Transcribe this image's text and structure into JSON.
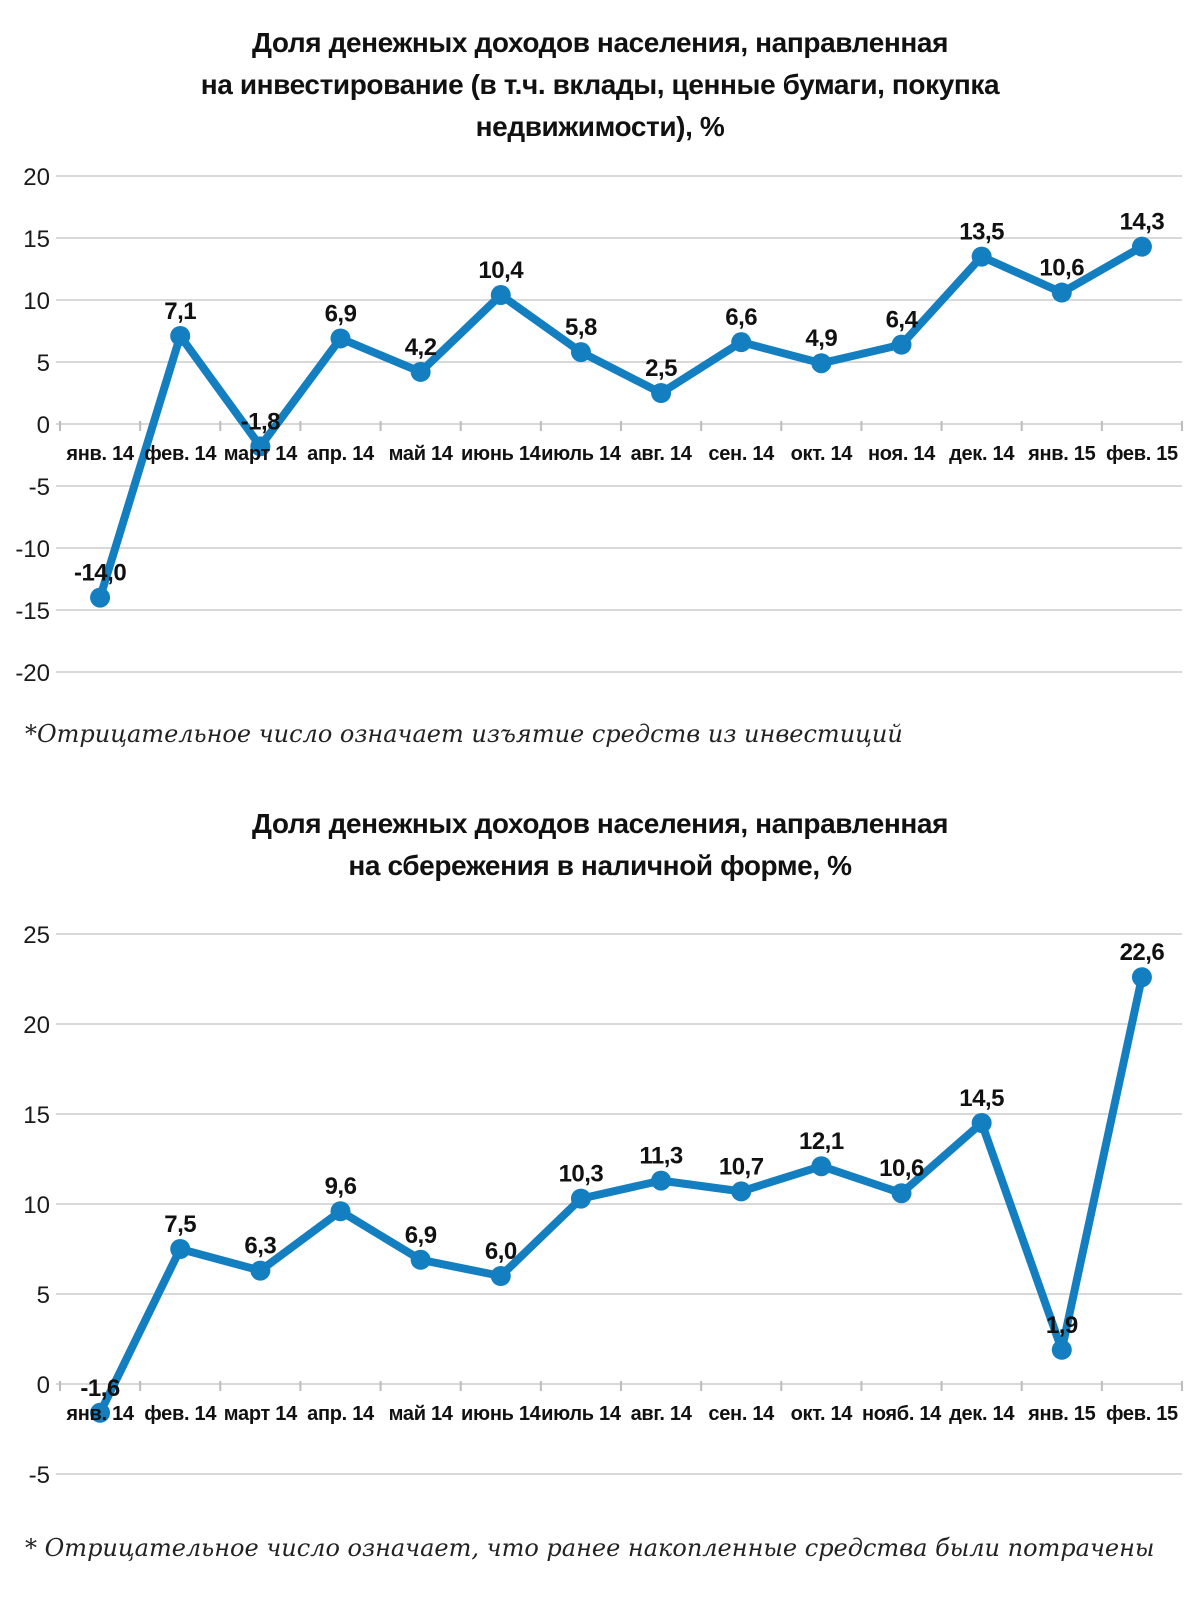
{
  "page": {
    "background": "#ffffff"
  },
  "colors": {
    "line": "#147fc0",
    "grid": "#d9d9d9",
    "tick": "#bdbdbd",
    "text": "#1a1a1a"
  },
  "chart_data": [
    {
      "type": "line",
      "title": "Доля денежных доходов населения, направленная на инвестирование (в т.ч. вклады, ценные бумаги, покупка недвижимости), %",
      "title_lines": [
        "Доля денежных доходов населения, направленная",
        "на инвестирование (в т.ч. вклады, ценные бумаги, покупка",
        "недвижимости), %"
      ],
      "categories": [
        "янв. 14",
        "фев. 14",
        "март 14",
        "апр. 14",
        "май 14",
        "июнь 14",
        "июль 14",
        "авг. 14",
        "сен. 14",
        "окт. 14",
        "ноя. 14",
        "дек. 14",
        "янв. 15",
        "фев. 15"
      ],
      "values": [
        -14.0,
        7.1,
        -1.8,
        6.9,
        4.2,
        10.4,
        5.8,
        2.5,
        6.6,
        4.9,
        6.4,
        13.5,
        10.6,
        14.3
      ],
      "labels": [
        "-14,0",
        "7,1",
        "-1,8",
        "6,9",
        "4,2",
        "10,4",
        "5,8",
        "2,5",
        "6,6",
        "4,9",
        "6,4",
        "13,5",
        "10,6",
        "14,3"
      ],
      "ylim": [
        -20,
        20
      ],
      "ytick_step": 5,
      "xlabel": "",
      "ylabel": "",
      "grid": "on",
      "legend": "none",
      "marker": "circle",
      "line_color": "#147fc0",
      "footnote": "*Отрицательное число означает изъятие средств из инвестиций"
    },
    {
      "type": "line",
      "title": "Доля денежных доходов населения, направленная на сбережения в наличной форме, %",
      "title_lines": [
        "Доля денежных доходов населения, направленная",
        "на сбережения в наличной форме, %"
      ],
      "categories": [
        "янв. 14",
        "фев. 14",
        "март 14",
        "апр. 14",
        "май 14",
        "июнь 14",
        "июль 14",
        "авг. 14",
        "сен. 14",
        "окт. 14",
        "нояб. 14",
        "дек. 14",
        "янв. 15",
        "фев. 15"
      ],
      "values": [
        -1.6,
        7.5,
        6.3,
        9.6,
        6.9,
        6.0,
        10.3,
        11.3,
        10.7,
        12.1,
        10.6,
        14.5,
        1.9,
        22.6
      ],
      "labels": [
        "-1,6",
        "7,5",
        "6,3",
        "9,6",
        "6,9",
        "6,0",
        "10,3",
        "11,3",
        "10,7",
        "12,1",
        "10,6",
        "14,5",
        "1,9",
        "22,6"
      ],
      "ylim": [
        -5,
        25
      ],
      "ytick_step": 5,
      "xlabel": "",
      "ylabel": "",
      "grid": "on",
      "legend": "none",
      "marker": "circle",
      "line_color": "#147fc0",
      "footnote": "* Отрицательное число означает, что ранее накопленные средства были потрачены"
    }
  ]
}
